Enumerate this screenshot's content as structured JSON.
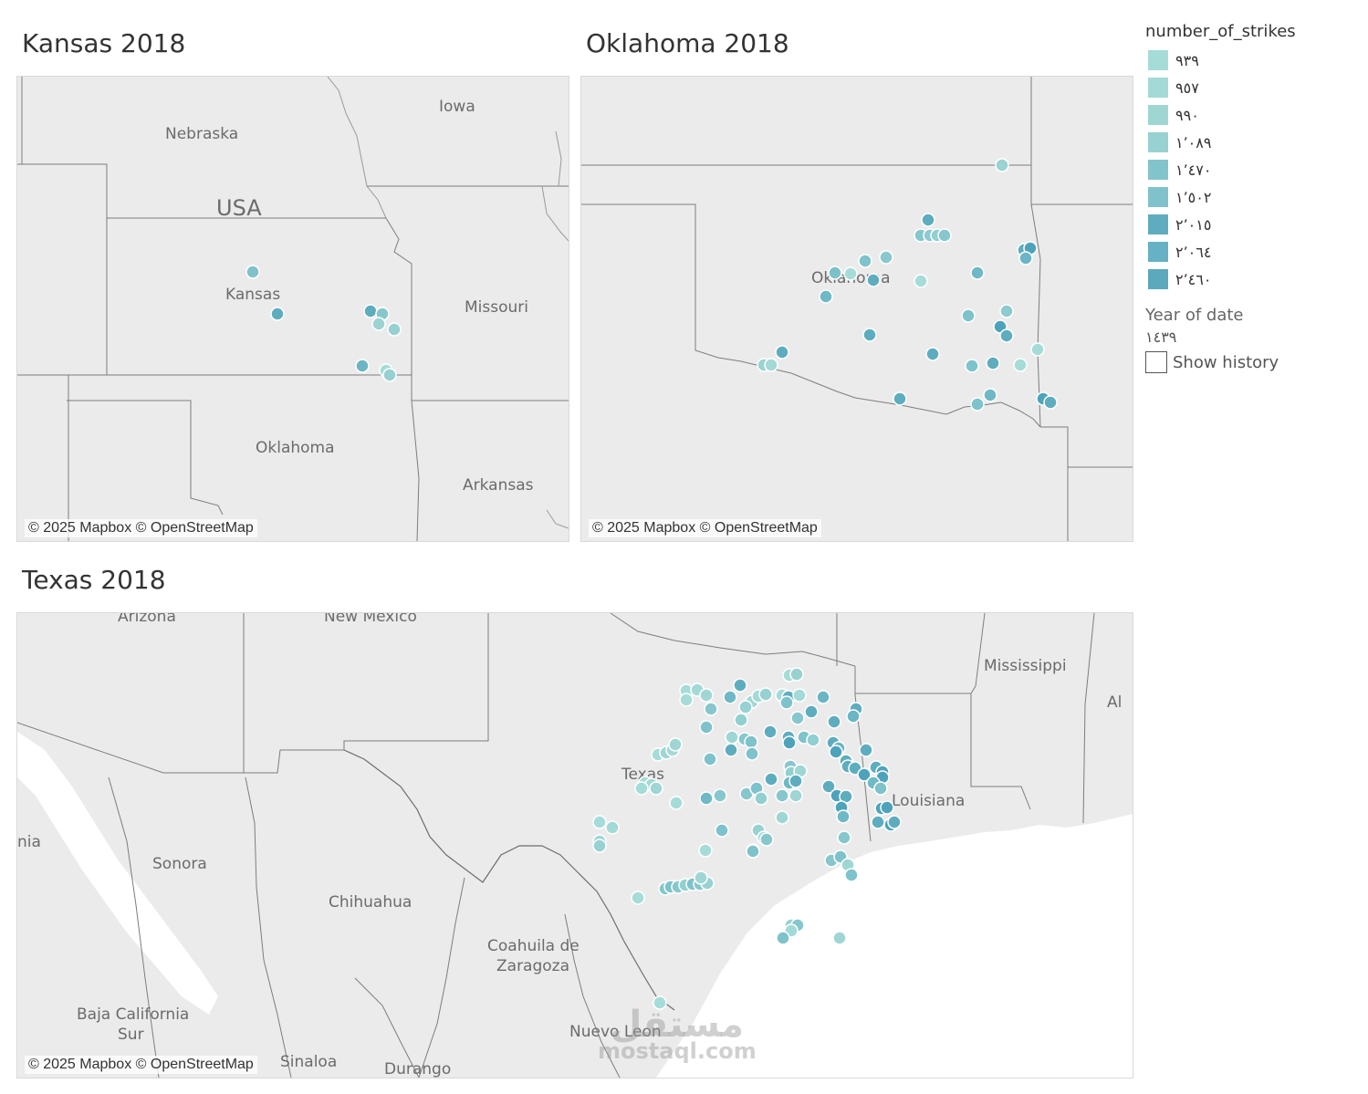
{
  "panels": {
    "kansas": {
      "title": "Kansas 2018",
      "credit": "© 2025 Mapbox © OpenStreetMap",
      "labels": {
        "nebraska": "Nebraska",
        "iowa": "Iowa",
        "usa": "USA",
        "kansas": "Kansas",
        "missouri": "Missouri",
        "oklahoma": "Oklahoma",
        "arkansas": "Arkansas"
      }
    },
    "oklahoma": {
      "title": "Oklahoma 2018",
      "credit": "© 2025 Mapbox © OpenStreetMap",
      "labels": {
        "oklahoma": "Oklahoma"
      }
    },
    "texas": {
      "title": "Texas 2018",
      "credit": "© 2025 Mapbox © OpenStreetMap",
      "labels": {
        "arizona": "Arizona",
        "new_mexico": "New Mexico",
        "mississippi": "Mississippi",
        "al": "Al",
        "texas": "Texas",
        "louisiana": "Louisiana",
        "nia": "nia",
        "sonora": "Sonora",
        "chihuahua": "Chihuahua",
        "coahuila_1": "Coahuila de",
        "coahuila_2": "Zaragoza",
        "baja_1": "Baja California",
        "baja_2": "Sur",
        "nuevo_leon": "Nuevo Leon",
        "sinaloa": "Sinaloa",
        "durango": "Durango"
      }
    }
  },
  "legend": {
    "title": "number_of_strikes",
    "items": [
      {
        "label": "٩٣٩",
        "color": "#a6dcd8"
      },
      {
        "label": "٩٥٧",
        "color": "#a3d9d6"
      },
      {
        "label": "٩٩٠",
        "color": "#9fd6d4"
      },
      {
        "label": "١٬٠٨٩",
        "color": "#98d1d2"
      },
      {
        "label": "١٬٤٧٠",
        "color": "#82c4cc"
      },
      {
        "label": "١٬٥٠٢",
        "color": "#80c2cb"
      },
      {
        "label": "٢٬٠١٥",
        "color": "#5eadbf"
      },
      {
        "label": "٢٬٠٦٤",
        "color": "#66b1c3"
      },
      {
        "label": "٢٬٤٦٠",
        "color": "#5ca8bd"
      }
    ],
    "year_label": "Year of date",
    "year_value": "١٤٣٩",
    "history_label": "Show history"
  },
  "watermark": {
    "top": "مستقل",
    "bottom": "mostaql.com"
  },
  "colors": {
    "light": "#a8dcd6",
    "mid": "#7cc3cc",
    "dark": "#4ea3bb",
    "map_bg": "#ebebeb"
  }
}
